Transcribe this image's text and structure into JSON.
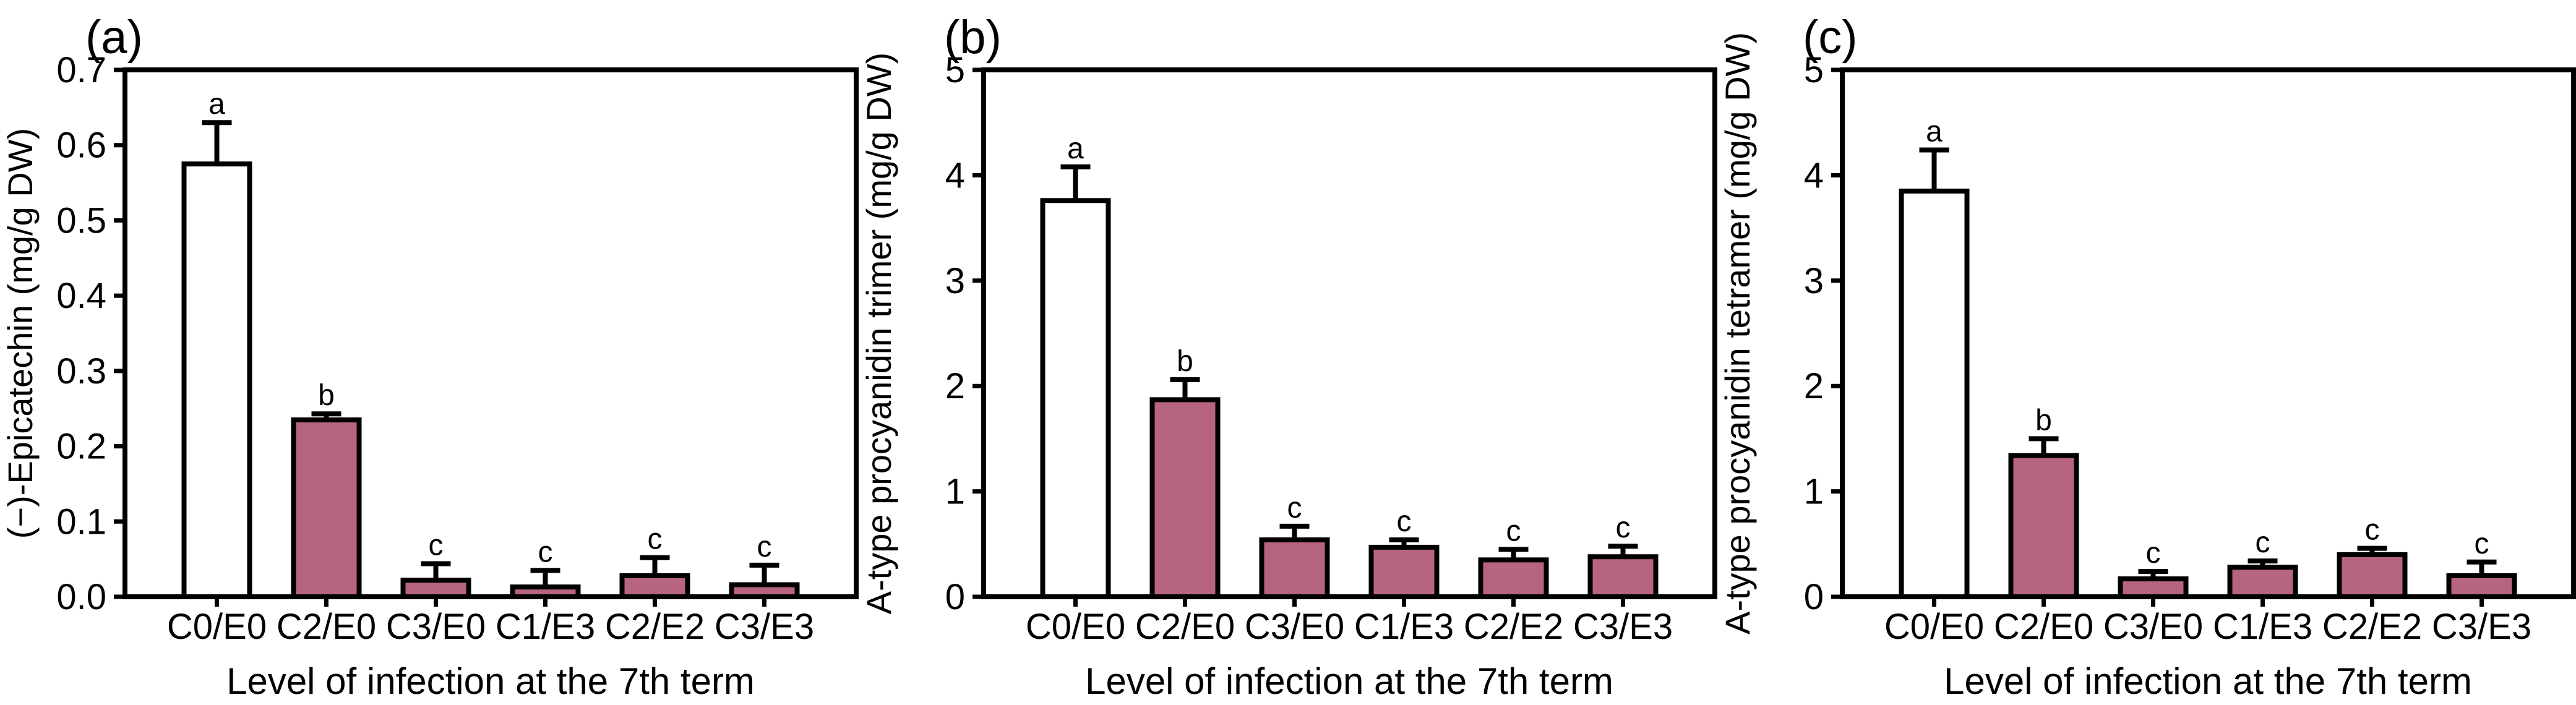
{
  "figure": {
    "background": "#ffffff",
    "line_color": "#000000",
    "x_axis_title": "Level of infection at the 7th term",
    "categories": [
      "C0/E0",
      "C2/E0",
      "C3/E0",
      "C1/E3",
      "C2/E2",
      "C3/E3"
    ],
    "bar_colors": {
      "control": "#ffffff",
      "treated": "#b7647f"
    }
  },
  "chart_data": [
    {
      "type": "bar",
      "panel_label": "(a)",
      "ylabel": "(−)-Epicatechin (mg/g DW)",
      "xlabel": "Level of infection at the 7th term",
      "ylim": [
        0,
        0.7
      ],
      "ytick_labels": [
        "0.0",
        "0.1",
        "0.2",
        "0.3",
        "0.4",
        "0.5",
        "0.6",
        "0.7"
      ],
      "ytick_values": [
        0,
        0.1,
        0.2,
        0.3,
        0.4,
        0.5,
        0.6,
        0.7
      ],
      "categories": [
        "C0/E0",
        "C2/E0",
        "C3/E0",
        "C1/E3",
        "C2/E2",
        "C3/E3"
      ],
      "values": [
        0.575,
        0.235,
        0.022,
        0.013,
        0.028,
        0.016
      ],
      "errors": [
        0.055,
        0.008,
        0.022,
        0.022,
        0.024,
        0.026
      ],
      "sig_letters": [
        "a",
        "b",
        "c",
        "c",
        "c",
        "c"
      ],
      "bar_fills": [
        "#ffffff",
        "#b7647f",
        "#b7647f",
        "#b7647f",
        "#b7647f",
        "#b7647f"
      ],
      "legend": "none",
      "grid": false
    },
    {
      "type": "bar",
      "panel_label": "(b)",
      "ylabel": "A-type procyanidin trimer (mg/g DW)",
      "xlabel": "Level of infection at the 7th term",
      "ylim": [
        0,
        5
      ],
      "ytick_labels": [
        "0",
        "1",
        "2",
        "3",
        "4",
        "5"
      ],
      "ytick_values": [
        0,
        1,
        2,
        3,
        4,
        5
      ],
      "categories": [
        "C0/E0",
        "C2/E0",
        "C3/E0",
        "C1/E3",
        "C2/E2",
        "C3/E3"
      ],
      "values": [
        3.76,
        1.87,
        0.54,
        0.47,
        0.35,
        0.38
      ],
      "errors": [
        0.32,
        0.19,
        0.13,
        0.07,
        0.1,
        0.1
      ],
      "sig_letters": [
        "a",
        "b",
        "c",
        "c",
        "c",
        "c"
      ],
      "bar_fills": [
        "#ffffff",
        "#b7647f",
        "#b7647f",
        "#b7647f",
        "#b7647f",
        "#b7647f"
      ],
      "legend": "none",
      "grid": false
    },
    {
      "type": "bar",
      "panel_label": "(c)",
      "ylabel": "A-type procyanidin tetramer (mg/g DW)",
      "xlabel": "Level of infection at the 7th term",
      "ylim": [
        0,
        5
      ],
      "ytick_labels": [
        "0",
        "1",
        "2",
        "3",
        "4",
        "5"
      ],
      "ytick_values": [
        0,
        1,
        2,
        3,
        4,
        5
      ],
      "categories": [
        "C0/E0",
        "C2/E0",
        "C3/E0",
        "C1/E3",
        "C2/E2",
        "C3/E3"
      ],
      "values": [
        3.85,
        1.34,
        0.17,
        0.28,
        0.4,
        0.2
      ],
      "errors": [
        0.39,
        0.16,
        0.07,
        0.06,
        0.06,
        0.13
      ],
      "sig_letters": [
        "a",
        "b",
        "c",
        "c",
        "c",
        "c"
      ],
      "bar_fills": [
        "#ffffff",
        "#b7647f",
        "#b7647f",
        "#b7647f",
        "#b7647f",
        "#b7647f"
      ],
      "legend": "none",
      "grid": false
    }
  ]
}
